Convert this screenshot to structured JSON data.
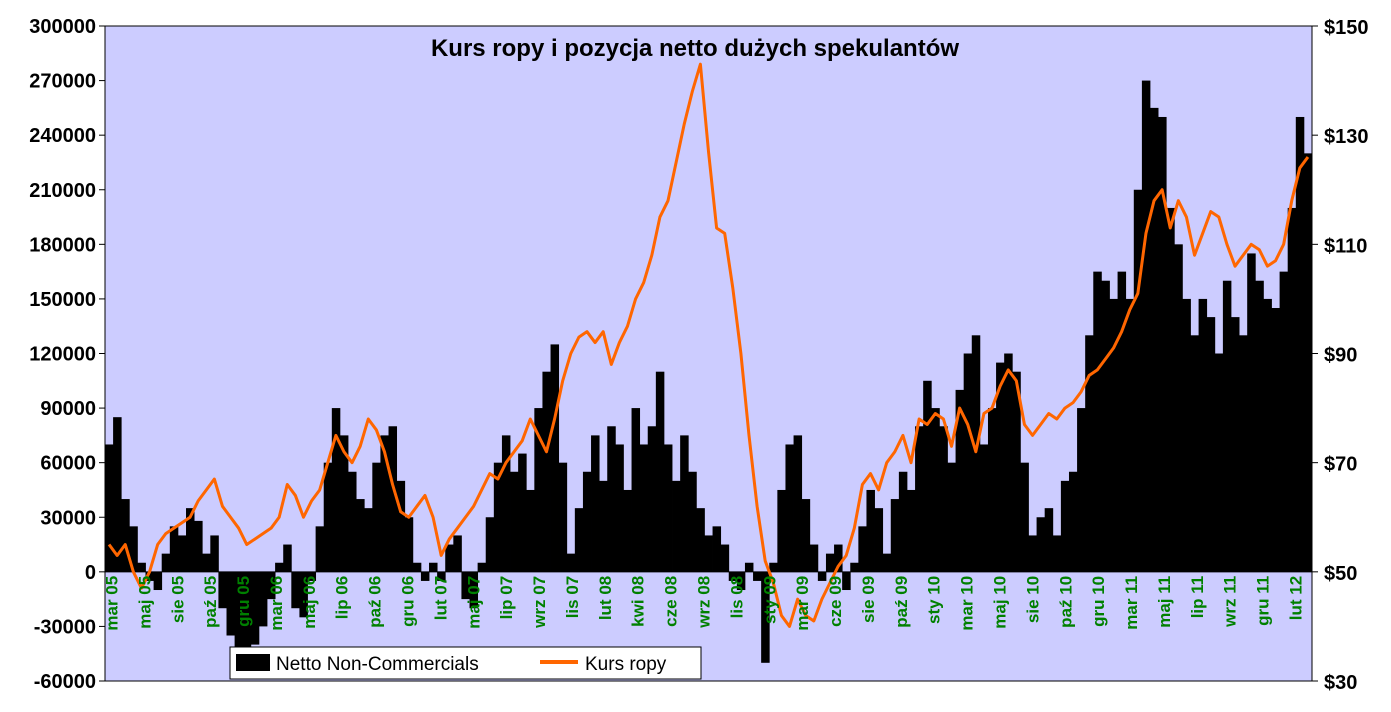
{
  "chart_data": {
    "type": "bar+line",
    "title": "Kurs ropy i pozycja netto dużych spekulantów",
    "colors": {
      "plot_background": "#ccccff",
      "bars": "#000000",
      "line": "#ff6600",
      "x_tick_labels": "#008000",
      "outer_background": "#ffffff"
    },
    "y_left": {
      "ylim": [
        -60000,
        300000
      ],
      "ticks": [
        -60000,
        -30000,
        0,
        30000,
        60000,
        90000,
        120000,
        150000,
        180000,
        210000,
        240000,
        270000,
        300000
      ],
      "tick_labels": [
        "-60000",
        "-30000",
        "0",
        "30000",
        "60000",
        "90000",
        "120000",
        "150000",
        "180000",
        "210000",
        "240000",
        "270000",
        "300000"
      ]
    },
    "y_right": {
      "ylim": [
        30,
        150
      ],
      "ticks": [
        30,
        50,
        70,
        90,
        110,
        130,
        150
      ],
      "tick_labels": [
        "$30",
        "$50",
        "$70",
        "$90",
        "$110",
        "$130",
        "$150"
      ]
    },
    "x_ticks": [
      "mar 05",
      "maj 05",
      "sie 05",
      "paź 05",
      "gru 05",
      "mar 06",
      "maj 06",
      "lip 06",
      "paź 06",
      "gru 06",
      "lut 07",
      "maj 07",
      "lip 07",
      "wrz 07",
      "lis 07",
      "lut 08",
      "kwi 08",
      "cze 08",
      "wrz 08",
      "lis 08",
      "sty 09",
      "mar 09",
      "cze 09",
      "sie 09",
      "paź 09",
      "sty 10",
      "mar 10",
      "maj 10",
      "sie 10",
      "paź 10",
      "gru 10",
      "mar 11",
      "maj 11",
      "lip 11",
      "wrz 11",
      "gru 11",
      "lut 12"
    ],
    "legend": {
      "placement": "bottom-left",
      "entries": [
        "Netto Non-Commercials",
        "Kurs ropy"
      ]
    },
    "series": [
      {
        "name": "Netto Non-Commercials",
        "kind": "bar",
        "axis": "left",
        "points": [
          [
            0,
            70000
          ],
          [
            1,
            85000
          ],
          [
            2,
            40000
          ],
          [
            3,
            25000
          ],
          [
            4,
            5000
          ],
          [
            5,
            -5000
          ],
          [
            6,
            -10000
          ],
          [
            7,
            10000
          ],
          [
            8,
            25000
          ],
          [
            9,
            20000
          ],
          [
            10,
            35000
          ],
          [
            11,
            28000
          ],
          [
            12,
            10000
          ],
          [
            13,
            20000
          ],
          [
            14,
            -20000
          ],
          [
            15,
            -35000
          ],
          [
            16,
            -50000
          ],
          [
            17,
            -55000
          ],
          [
            18,
            -40000
          ],
          [
            19,
            -30000
          ],
          [
            20,
            -15000
          ],
          [
            21,
            5000
          ],
          [
            22,
            15000
          ],
          [
            23,
            -20000
          ],
          [
            24,
            -25000
          ],
          [
            25,
            -5000
          ],
          [
            26,
            25000
          ],
          [
            27,
            60000
          ],
          [
            28,
            90000
          ],
          [
            29,
            75000
          ],
          [
            30,
            55000
          ],
          [
            31,
            40000
          ],
          [
            32,
            35000
          ],
          [
            33,
            60000
          ],
          [
            34,
            75000
          ],
          [
            35,
            80000
          ],
          [
            36,
            50000
          ],
          [
            37,
            30000
          ],
          [
            38,
            5000
          ],
          [
            39,
            -5000
          ],
          [
            40,
            5000
          ],
          [
            41,
            -5000
          ],
          [
            42,
            15000
          ],
          [
            43,
            20000
          ],
          [
            44,
            -15000
          ],
          [
            45,
            -20000
          ],
          [
            46,
            5000
          ],
          [
            47,
            30000
          ],
          [
            48,
            60000
          ],
          [
            49,
            75000
          ],
          [
            50,
            55000
          ],
          [
            51,
            65000
          ],
          [
            52,
            45000
          ],
          [
            53,
            90000
          ],
          [
            54,
            110000
          ],
          [
            55,
            125000
          ],
          [
            56,
            60000
          ],
          [
            57,
            10000
          ],
          [
            58,
            35000
          ],
          [
            59,
            55000
          ],
          [
            60,
            75000
          ],
          [
            61,
            50000
          ],
          [
            62,
            80000
          ],
          [
            63,
            70000
          ],
          [
            64,
            45000
          ],
          [
            65,
            90000
          ],
          [
            66,
            70000
          ],
          [
            67,
            80000
          ],
          [
            68,
            110000
          ],
          [
            69,
            70000
          ],
          [
            70,
            50000
          ],
          [
            71,
            75000
          ],
          [
            72,
            55000
          ],
          [
            73,
            35000
          ],
          [
            74,
            20000
          ],
          [
            75,
            25000
          ],
          [
            76,
            15000
          ],
          [
            77,
            -5000
          ],
          [
            78,
            -10000
          ],
          [
            79,
            5000
          ],
          [
            80,
            -5000
          ],
          [
            81,
            -50000
          ],
          [
            82,
            5000
          ],
          [
            83,
            45000
          ],
          [
            84,
            70000
          ],
          [
            85,
            75000
          ],
          [
            86,
            40000
          ],
          [
            87,
            15000
          ],
          [
            88,
            -5000
          ],
          [
            89,
            10000
          ],
          [
            90,
            15000
          ],
          [
            91,
            -10000
          ],
          [
            92,
            5000
          ],
          [
            93,
            25000
          ],
          [
            94,
            45000
          ],
          [
            95,
            35000
          ],
          [
            96,
            10000
          ],
          [
            97,
            40000
          ],
          [
            98,
            55000
          ],
          [
            99,
            45000
          ],
          [
            100,
            80000
          ],
          [
            101,
            105000
          ],
          [
            102,
            90000
          ],
          [
            103,
            80000
          ],
          [
            104,
            60000
          ],
          [
            105,
            100000
          ],
          [
            106,
            120000
          ],
          [
            107,
            130000
          ],
          [
            108,
            70000
          ],
          [
            109,
            90000
          ],
          [
            110,
            115000
          ],
          [
            111,
            120000
          ],
          [
            112,
            110000
          ],
          [
            113,
            60000
          ],
          [
            114,
            20000
          ],
          [
            115,
            30000
          ],
          [
            116,
            35000
          ],
          [
            117,
            20000
          ],
          [
            118,
            50000
          ],
          [
            119,
            55000
          ],
          [
            120,
            90000
          ],
          [
            121,
            130000
          ],
          [
            122,
            165000
          ],
          [
            123,
            160000
          ],
          [
            124,
            150000
          ],
          [
            125,
            165000
          ],
          [
            126,
            150000
          ],
          [
            127,
            210000
          ],
          [
            128,
            270000
          ],
          [
            129,
            255000
          ],
          [
            130,
            250000
          ],
          [
            131,
            200000
          ],
          [
            132,
            180000
          ],
          [
            133,
            150000
          ],
          [
            134,
            130000
          ],
          [
            135,
            150000
          ],
          [
            136,
            140000
          ],
          [
            137,
            120000
          ],
          [
            138,
            160000
          ],
          [
            139,
            140000
          ],
          [
            140,
            130000
          ],
          [
            141,
            175000
          ],
          [
            142,
            160000
          ],
          [
            143,
            150000
          ],
          [
            144,
            145000
          ],
          [
            145,
            165000
          ],
          [
            146,
            200000
          ],
          [
            147,
            250000
          ],
          [
            148,
            230000
          ]
        ]
      },
      {
        "name": "Kurs ropy",
        "kind": "line",
        "axis": "right",
        "points": [
          [
            0,
            55
          ],
          [
            1,
            53
          ],
          [
            2,
            55
          ],
          [
            3,
            50
          ],
          [
            4,
            47
          ],
          [
            5,
            50
          ],
          [
            6,
            55
          ],
          [
            7,
            57
          ],
          [
            8,
            58
          ],
          [
            9,
            59
          ],
          [
            10,
            60
          ],
          [
            11,
            63
          ],
          [
            12,
            65
          ],
          [
            13,
            67
          ],
          [
            14,
            62
          ],
          [
            15,
            60
          ],
          [
            16,
            58
          ],
          [
            17,
            55
          ],
          [
            18,
            56
          ],
          [
            19,
            57
          ],
          [
            20,
            58
          ],
          [
            21,
            60
          ],
          [
            22,
            66
          ],
          [
            23,
            64
          ],
          [
            24,
            60
          ],
          [
            25,
            63
          ],
          [
            26,
            65
          ],
          [
            27,
            70
          ],
          [
            28,
            75
          ],
          [
            29,
            72
          ],
          [
            30,
            70
          ],
          [
            31,
            73
          ],
          [
            32,
            78
          ],
          [
            33,
            76
          ],
          [
            34,
            72
          ],
          [
            35,
            66
          ],
          [
            36,
            61
          ],
          [
            37,
            60
          ],
          [
            38,
            62
          ],
          [
            39,
            64
          ],
          [
            40,
            60
          ],
          [
            41,
            53
          ],
          [
            42,
            56
          ],
          [
            43,
            58
          ],
          [
            44,
            60
          ],
          [
            45,
            62
          ],
          [
            46,
            65
          ],
          [
            47,
            68
          ],
          [
            48,
            67
          ],
          [
            49,
            70
          ],
          [
            50,
            72
          ],
          [
            51,
            74
          ],
          [
            52,
            78
          ],
          [
            53,
            75
          ],
          [
            54,
            72
          ],
          [
            55,
            78
          ],
          [
            56,
            85
          ],
          [
            57,
            90
          ],
          [
            58,
            93
          ],
          [
            59,
            94
          ],
          [
            60,
            92
          ],
          [
            61,
            94
          ],
          [
            62,
            88
          ],
          [
            63,
            92
          ],
          [
            64,
            95
          ],
          [
            65,
            100
          ],
          [
            66,
            103
          ],
          [
            67,
            108
          ],
          [
            68,
            115
          ],
          [
            69,
            118
          ],
          [
            70,
            125
          ],
          [
            71,
            132
          ],
          [
            72,
            138
          ],
          [
            73,
            143
          ],
          [
            74,
            127
          ],
          [
            75,
            113
          ],
          [
            76,
            112
          ],
          [
            77,
            102
          ],
          [
            78,
            90
          ],
          [
            79,
            75
          ],
          [
            80,
            62
          ],
          [
            81,
            52
          ],
          [
            82,
            48
          ],
          [
            83,
            42
          ],
          [
            84,
            40
          ],
          [
            85,
            45
          ],
          [
            86,
            42
          ],
          [
            87,
            41
          ],
          [
            88,
            45
          ],
          [
            89,
            48
          ],
          [
            90,
            51
          ],
          [
            91,
            53
          ],
          [
            92,
            58
          ],
          [
            93,
            66
          ],
          [
            94,
            68
          ],
          [
            95,
            65
          ],
          [
            96,
            70
          ],
          [
            97,
            72
          ],
          [
            98,
            75
          ],
          [
            99,
            70
          ],
          [
            100,
            78
          ],
          [
            101,
            77
          ],
          [
            102,
            79
          ],
          [
            103,
            78
          ],
          [
            104,
            73
          ],
          [
            105,
            80
          ],
          [
            106,
            77
          ],
          [
            107,
            72
          ],
          [
            108,
            79
          ],
          [
            109,
            80
          ],
          [
            110,
            84
          ],
          [
            111,
            87
          ],
          [
            112,
            85
          ],
          [
            113,
            77
          ],
          [
            114,
            75
          ],
          [
            115,
            77
          ],
          [
            116,
            79
          ],
          [
            117,
            78
          ],
          [
            118,
            80
          ],
          [
            119,
            81
          ],
          [
            120,
            83
          ],
          [
            121,
            86
          ],
          [
            122,
            87
          ],
          [
            123,
            89
          ],
          [
            124,
            91
          ],
          [
            125,
            94
          ],
          [
            126,
            98
          ],
          [
            127,
            101
          ],
          [
            128,
            112
          ],
          [
            129,
            118
          ],
          [
            130,
            120
          ],
          [
            131,
            113
          ],
          [
            132,
            118
          ],
          [
            133,
            115
          ],
          [
            134,
            108
          ],
          [
            135,
            112
          ],
          [
            136,
            116
          ],
          [
            137,
            115
          ],
          [
            138,
            110
          ],
          [
            139,
            106
          ],
          [
            140,
            108
          ],
          [
            141,
            110
          ],
          [
            142,
            109
          ],
          [
            143,
            106
          ],
          [
            144,
            107
          ],
          [
            145,
            110
          ],
          [
            146,
            118
          ],
          [
            147,
            124
          ],
          [
            148,
            126
          ]
        ]
      }
    ]
  }
}
